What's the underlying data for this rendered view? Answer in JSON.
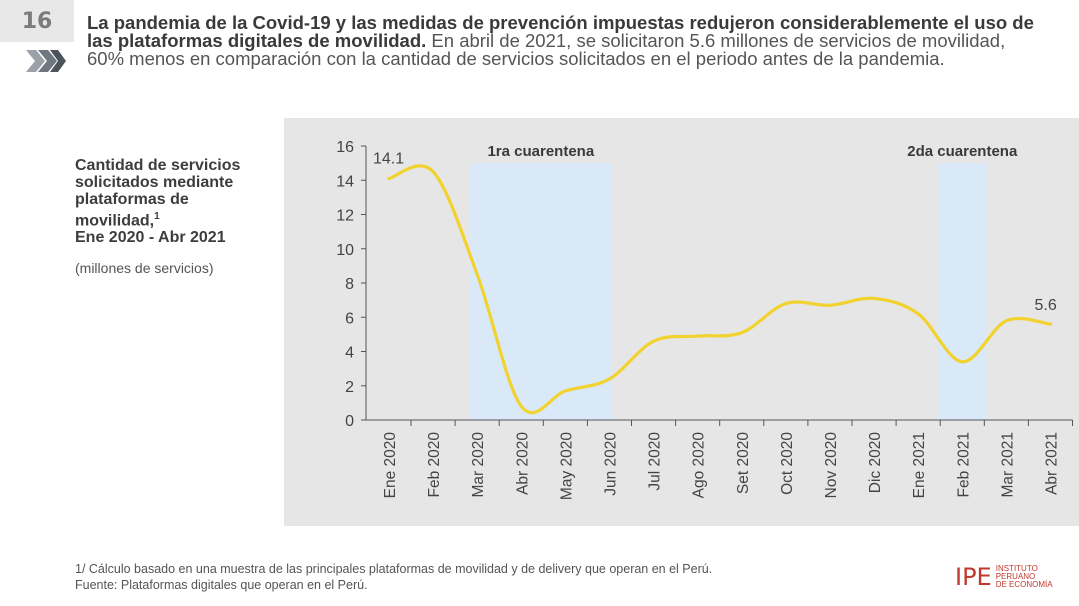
{
  "slide": {
    "number": "16"
  },
  "headline": {
    "bold": "La pandemia de la Covid-19 y las medidas de prevención impuestas redujeron considerablemente el uso de las plataformas digitales de movilidad.",
    "rest": " En abril de 2021, se solicitaron 5.6 millones de servicios de movilidad, 60% menos en comparación con la cantidad de servicios solicitados en el periodo antes de la pandemia."
  },
  "side": {
    "title": "Cantidad de servicios solicitados mediante plataformas de movilidad,",
    "title_sup": "1",
    "period": "Ene 2020 - Abr 2021",
    "unit": "(millones de servicios)"
  },
  "footnote": {
    "note": "1/ Cálculo basado en una muestra de las principales plataformas de movilidad y de delivery que operan en el Perú.",
    "source": "Fuente: Plataformas digitales que operan en el Perú."
  },
  "logo": {
    "name": "IPE",
    "line1": "INSTITUTO",
    "line2": "PERUANO",
    "line3": "DE ECONOMÍA"
  },
  "chart_data": {
    "type": "line",
    "categories": [
      "Ene 2020",
      "Feb 2020",
      "Mar 2020",
      "Abr 2020",
      "May 2020",
      "Jun 2020",
      "Jul 2020",
      "Ago 2020",
      "Set 2020",
      "Oct 2020",
      "Nov 2020",
      "Dic 2020",
      "Ene 2021",
      "Feb 2021",
      "Mar 2021",
      "Abr 2021"
    ],
    "series": [
      {
        "values": [
          14.1,
          14.5,
          8.5,
          0.8,
          1.7,
          2.4,
          4.6,
          4.9,
          5.1,
          6.8,
          6.7,
          7.1,
          6.2,
          3.4,
          5.8,
          5.6
        ]
      }
    ],
    "ylim": [
      0,
      16
    ],
    "yticks": [
      0,
      2,
      4,
      6,
      8,
      10,
      12,
      14,
      16
    ],
    "data_labels": [
      {
        "index": 0,
        "text": "14.1"
      },
      {
        "index": 15,
        "text": "5.6"
      }
    ],
    "shaded_periods": [
      {
        "label": "1ra cuarentena",
        "start": 2,
        "end": 5
      },
      {
        "label": "2da cuarentena",
        "start": 12.5,
        "end": 13.5
      }
    ],
    "colors": {
      "line": "#f2d22e",
      "band": "#d9e9f7",
      "panel": "#e6e6e6",
      "axis": "#555555"
    },
    "grid": false
  }
}
